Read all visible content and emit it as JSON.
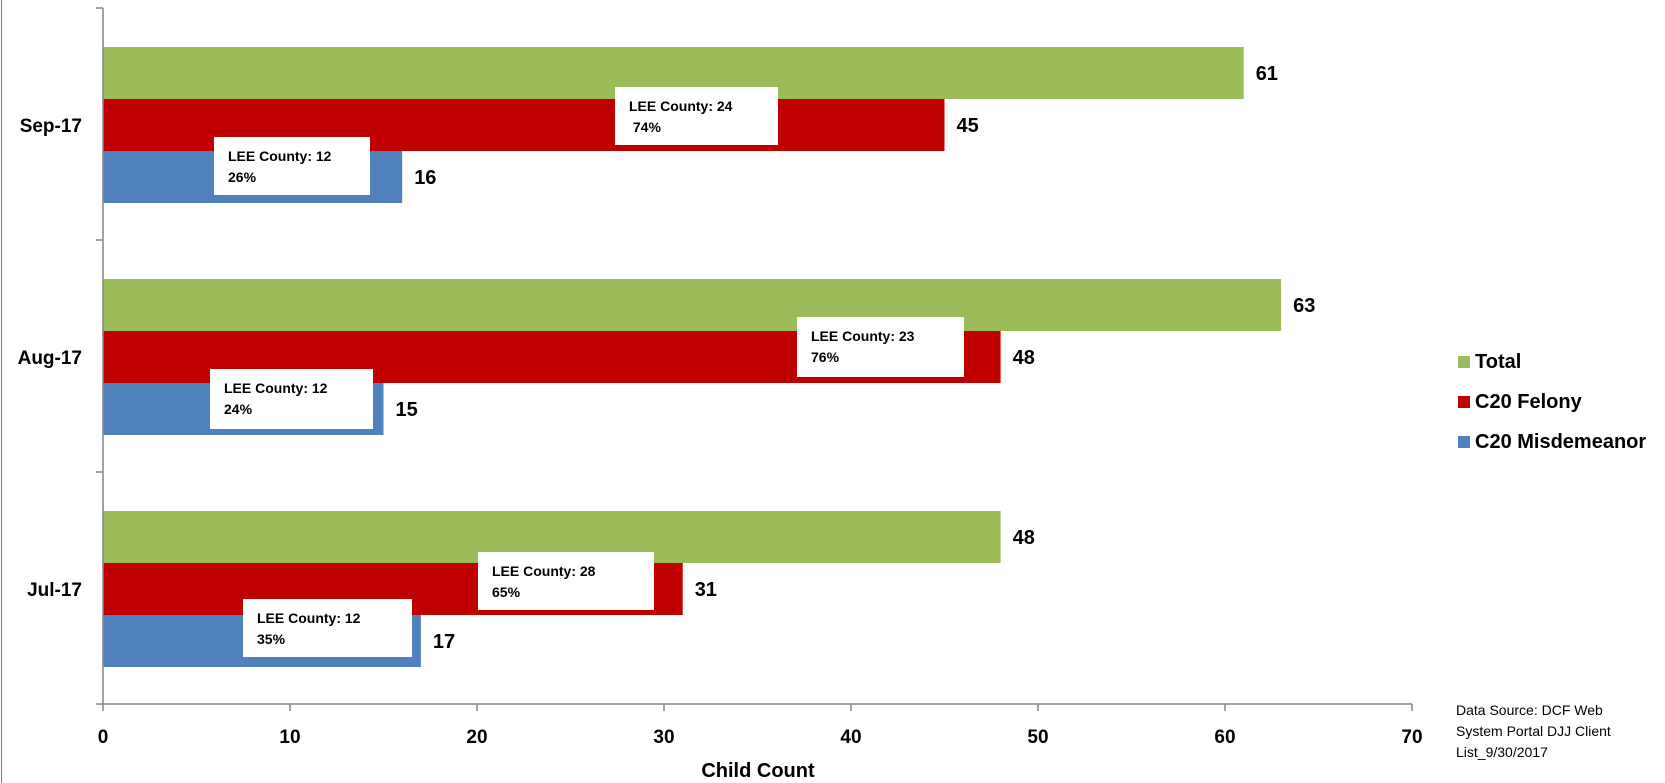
{
  "chart_data": {
    "type": "bar",
    "orientation": "horizontal",
    "categories": [
      "Sep-17",
      "Aug-17",
      "Jul-17"
    ],
    "series": [
      {
        "name": "Total",
        "color": "#9BBB59",
        "values": [
          61,
          63,
          48
        ]
      },
      {
        "name": "C20 Felony",
        "color": "#C00000",
        "values": [
          45,
          48,
          31
        ]
      },
      {
        "name": "C20 Misdemeanor",
        "color": "#4F81BD",
        "values": [
          16,
          15,
          17
        ]
      }
    ],
    "xlabel": "Child Count",
    "ylabel": "",
    "xlim": [
      0,
      70
    ],
    "x_ticks": [
      0,
      10,
      20,
      30,
      40,
      50,
      60,
      70
    ],
    "grid": false,
    "legend_position": "right",
    "annotations": [
      {
        "category": "Sep-17",
        "series": "C20 Felony",
        "line1": "LEE County: 24",
        "line2": " 74%"
      },
      {
        "category": "Sep-17",
        "series": "C20 Misdemeanor",
        "line1": "LEE County: 12",
        "line2": "26%"
      },
      {
        "category": "Aug-17",
        "series": "C20 Felony",
        "line1": "LEE County: 23",
        "line2": "76%"
      },
      {
        "category": "Aug-17",
        "series": "C20 Misdemeanor",
        "line1": "LEE County: 12",
        "line2": "24%"
      },
      {
        "category": "Jul-17",
        "series": "C20 Felony",
        "line1": "LEE County: 28",
        "line2": "65%"
      },
      {
        "category": "Jul-17",
        "series": "C20 Misdemeanor",
        "line1": "LEE County: 12",
        "line2": "35%"
      }
    ]
  },
  "legend": {
    "items": [
      {
        "label": "Total",
        "color": "#9BBB59"
      },
      {
        "label": "C20 Felony",
        "color": "#C00000"
      },
      {
        "label": "C20 Misdemeanor",
        "color": "#4F81BD"
      }
    ]
  },
  "source_note": "Data Source: DCF Web System Portal DJJ Client List_9/30/2017"
}
